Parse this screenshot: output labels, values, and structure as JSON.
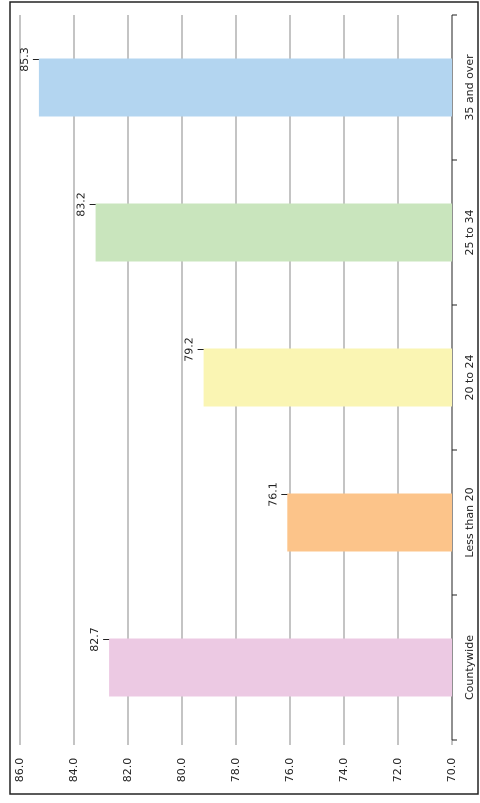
{
  "chart_data": {
    "type": "bar",
    "categories": [
      "Countywide",
      "Less than 20",
      "20 to 24",
      "25 to 34",
      "35 and over"
    ],
    "values": [
      82.7,
      76.1,
      79.2,
      83.2,
      85.3
    ],
    "colors": [
      "#ecc9e3",
      "#fcc48a",
      "#faf5b3",
      "#c9e5bd",
      "#b3d5f0"
    ],
    "ylim": [
      70,
      86
    ],
    "yticks": [
      {
        "value": 70,
        "label": "70.0"
      },
      {
        "value": 72,
        "label": "72.0"
      },
      {
        "value": 74,
        "label": "74.0"
      },
      {
        "value": 76,
        "label": "76.0"
      },
      {
        "value": 78,
        "label": "78.0"
      },
      {
        "value": 80,
        "label": "80.0"
      },
      {
        "value": 82,
        "label": "82.0"
      },
      {
        "value": 84,
        "label": "84.0"
      },
      {
        "value": 86,
        "label": "86.0"
      }
    ],
    "grid": true
  }
}
